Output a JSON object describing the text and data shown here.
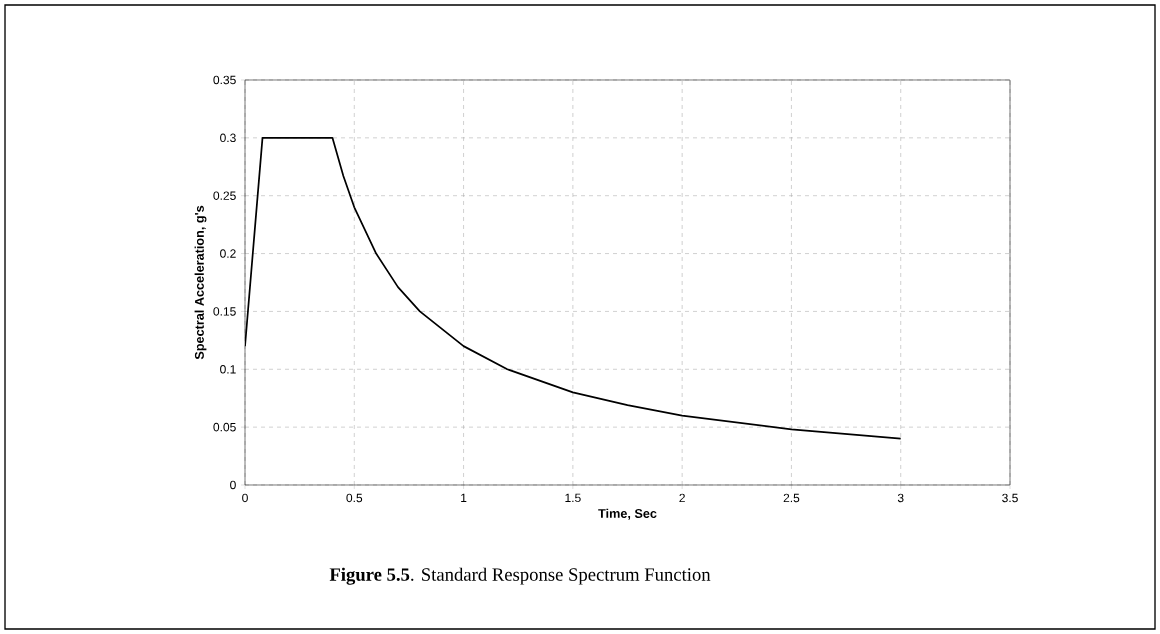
{
  "chart_data": {
    "type": "line",
    "xlabel": "Time, Sec",
    "ylabel": "Spectral Acceleration, g's",
    "annotations": [
      "**Figure 5.5**. Standard Response Spectrum Function"
    ],
    "x": [
      0,
      0.08,
      0.4,
      0.45,
      0.5,
      0.6,
      0.7,
      0.8,
      1.0,
      1.2,
      1.5,
      1.75,
      2.0,
      2.5,
      3.0
    ],
    "series": [
      {
        "color": "#000000",
        "values": [
          0.12,
          0.3,
          0.3,
          0.267,
          0.24,
          0.2,
          0.171,
          0.15,
          0.12,
          0.1,
          0.08,
          0.069,
          0.06,
          0.048,
          0.04
        ]
      }
    ],
    "xlim": [
      0,
      3.5
    ],
    "ylim": [
      0,
      0.35
    ],
    "xticks": [
      0,
      0.5,
      1,
      1.5,
      2,
      2.5,
      3,
      3.5
    ],
    "yticks": [
      0,
      0.05,
      0.1,
      0.15,
      0.2,
      0.25,
      0.3,
      0.35
    ],
    "grid": true,
    "marker": "none",
    "line_style": "solid"
  }
}
